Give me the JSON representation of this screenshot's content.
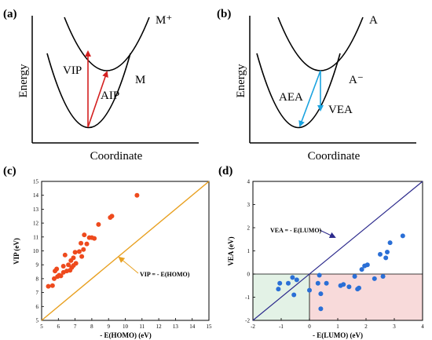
{
  "panels": {
    "a": {
      "label": "(a)",
      "ylabel": "Energy",
      "xlabel": "Coordinate",
      "upper_curve": "M⁺",
      "lower_curve": "M",
      "arrow_vertical": "VIP",
      "arrow_diagonal": "AIP"
    },
    "b": {
      "label": "(b)",
      "ylabel": "Energy",
      "xlabel": "Coordinate",
      "upper_curve": "A",
      "lower_curve": "A⁻",
      "arrow_diagonal": "AEA",
      "arrow_vertical": "VEA"
    }
  },
  "colors": {
    "orange_points": "#ee4a1d",
    "orange_line": "#e8a020",
    "blue_points": "#2a6fd6",
    "navy_line": "#2c2a8c",
    "red_arrow": "#d42020",
    "cyan_arrow": "#1aa3e0",
    "green_region": "#e3f2e6",
    "pink_region": "#f8dada"
  },
  "chart_data": [
    {
      "panel_label": "(c)",
      "type": "scatter",
      "title": "",
      "xlabel": "- E(HOMO) (eV)",
      "ylabel": "VIP (eV)",
      "xlim": [
        5,
        15
      ],
      "ylim": [
        5,
        15
      ],
      "xticks": [
        "5",
        "6",
        "7",
        "8",
        "9",
        "10",
        "11",
        "12",
        "13",
        "14",
        "15"
      ],
      "yticks": [
        "5",
        "6",
        "7",
        "8",
        "9",
        "10",
        "11",
        "12",
        "13",
        "14",
        "15"
      ],
      "grid": false,
      "line": {
        "label": "VIP = - E(HOMO)",
        "from": [
          5,
          5
        ],
        "to": [
          15,
          15
        ]
      },
      "points": [
        [
          5.4,
          7.45
        ],
        [
          5.65,
          7.5
        ],
        [
          5.75,
          8.0
        ],
        [
          5.8,
          8.55
        ],
        [
          5.9,
          8.7
        ],
        [
          5.95,
          8.15
        ],
        [
          6.05,
          8.25
        ],
        [
          6.15,
          8.2
        ],
        [
          6.3,
          8.45
        ],
        [
          6.3,
          8.9
        ],
        [
          6.4,
          9.7
        ],
        [
          6.5,
          8.55
        ],
        [
          6.6,
          9.0
        ],
        [
          6.7,
          8.6
        ],
        [
          6.75,
          9.3
        ],
        [
          6.8,
          8.8
        ],
        [
          6.9,
          8.95
        ],
        [
          6.9,
          9.5
        ],
        [
          7.05,
          9.1
        ],
        [
          7.0,
          9.9
        ],
        [
          7.25,
          9.95
        ],
        [
          7.35,
          10.55
        ],
        [
          7.4,
          9.6
        ],
        [
          7.5,
          10.1
        ],
        [
          7.55,
          11.15
        ],
        [
          7.7,
          10.5
        ],
        [
          7.85,
          10.95
        ],
        [
          8.0,
          10.95
        ],
        [
          8.15,
          10.9
        ],
        [
          8.4,
          11.9
        ],
        [
          9.1,
          12.4
        ],
        [
          9.2,
          12.5
        ],
        [
          10.7,
          14.0
        ]
      ]
    },
    {
      "panel_label": "(d)",
      "type": "scatter",
      "title": "",
      "xlabel": "- E(LUMO) (eV)",
      "ylabel": "VEA (eV)",
      "xlim": [
        -2,
        4
      ],
      "ylim": [
        -2,
        4
      ],
      "xticks": [
        "-2",
        "-1",
        "0",
        "1",
        "2",
        "3",
        "4"
      ],
      "yticks": [
        "-2",
        "-1",
        "0",
        "1",
        "2",
        "3",
        "4"
      ],
      "grid": false,
      "line": {
        "label": "VEA = - E(LUMO)",
        "from": [
          -2,
          -2
        ],
        "to": [
          4,
          4
        ]
      },
      "points": [
        [
          -1.1,
          -0.65
        ],
        [
          -1.05,
          -0.4
        ],
        [
          -0.75,
          -0.4
        ],
        [
          -0.6,
          -0.15
        ],
        [
          -0.55,
          -0.9
        ],
        [
          -0.45,
          -0.25
        ],
        [
          0.0,
          -0.7
        ],
        [
          0.3,
          -0.4
        ],
        [
          0.35,
          -0.05
        ],
        [
          0.4,
          -0.85
        ],
        [
          0.4,
          -1.5
        ],
        [
          0.6,
          -0.4
        ],
        [
          1.1,
          -0.5
        ],
        [
          1.2,
          -0.45
        ],
        [
          1.4,
          -0.55
        ],
        [
          1.6,
          -0.1
        ],
        [
          1.7,
          -0.65
        ],
        [
          1.75,
          -0.6
        ],
        [
          1.85,
          0.2
        ],
        [
          1.95,
          0.35
        ],
        [
          2.05,
          0.4
        ],
        [
          2.3,
          -0.2
        ],
        [
          2.5,
          0.85
        ],
        [
          2.6,
          -0.1
        ],
        [
          2.7,
          0.7
        ],
        [
          2.75,
          0.95
        ],
        [
          2.85,
          1.35
        ],
        [
          3.3,
          1.65
        ]
      ]
    }
  ]
}
